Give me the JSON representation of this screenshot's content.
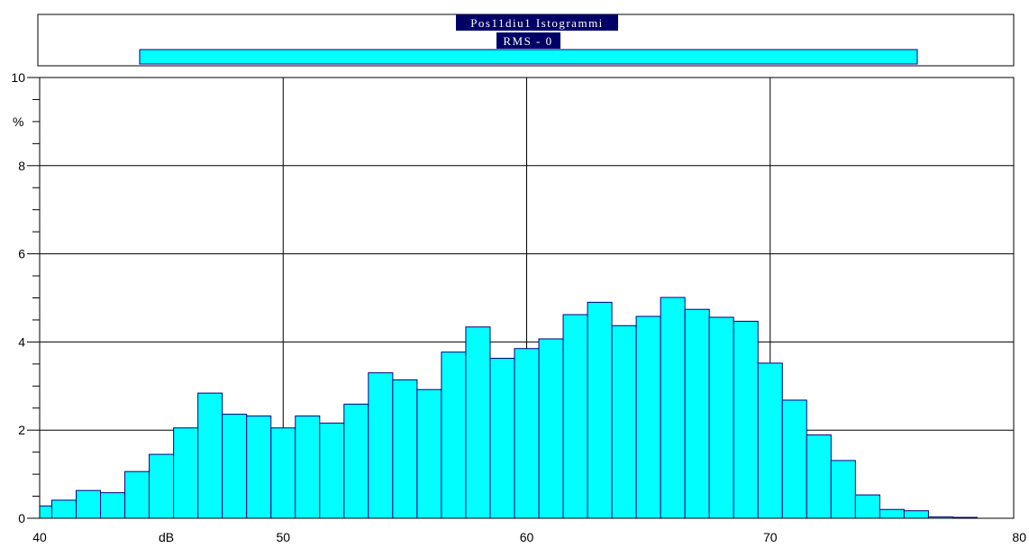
{
  "header": {
    "title": "Pos11diu1 Istogrammi",
    "subtitle": "RMS - 0"
  },
  "colors": {
    "bar_fill": "#00ffff",
    "bar_stroke": "#000080",
    "label_bg": "#000066",
    "grid": "#000000"
  },
  "chart_data": {
    "type": "bar",
    "title": "Pos11diu1 Istogrammi",
    "subtitle": "RMS - 0",
    "xlabel": "dB",
    "ylabel": "%",
    "xlim": [
      40,
      80
    ],
    "ylim": [
      0,
      10
    ],
    "x_ticks": [
      40,
      50,
      60,
      70,
      80
    ],
    "y_ticks": [
      0,
      2,
      4,
      6,
      8,
      10
    ],
    "bin_width": 1,
    "bin_starts": [
      39.5,
      40.5,
      41.5,
      42.5,
      43.5,
      44.5,
      45.5,
      46.5,
      47.5,
      48.5,
      49.5,
      50.5,
      51.5,
      52.5,
      53.5,
      54.5,
      55.5,
      56.5,
      57.5,
      58.5,
      59.5,
      60.5,
      61.5,
      62.5,
      63.5,
      64.5,
      65.5,
      66.5,
      67.5,
      68.5,
      69.5,
      70.5,
      71.5,
      72.5,
      73.5,
      74.5,
      75.5,
      76.5,
      77.5
    ],
    "values": [
      0.28,
      0.41,
      0.63,
      0.58,
      1.06,
      1.45,
      2.05,
      2.84,
      2.36,
      2.32,
      2.05,
      2.32,
      2.16,
      2.59,
      3.3,
      3.14,
      2.92,
      3.77,
      4.34,
      3.63,
      3.85,
      4.07,
      4.62,
      4.9,
      4.37,
      4.58,
      5.01,
      4.74,
      4.56,
      4.47,
      3.52,
      2.68,
      1.89,
      1.31,
      0.53,
      0.2,
      0.17,
      0.03,
      0.02
    ],
    "grid": true
  }
}
